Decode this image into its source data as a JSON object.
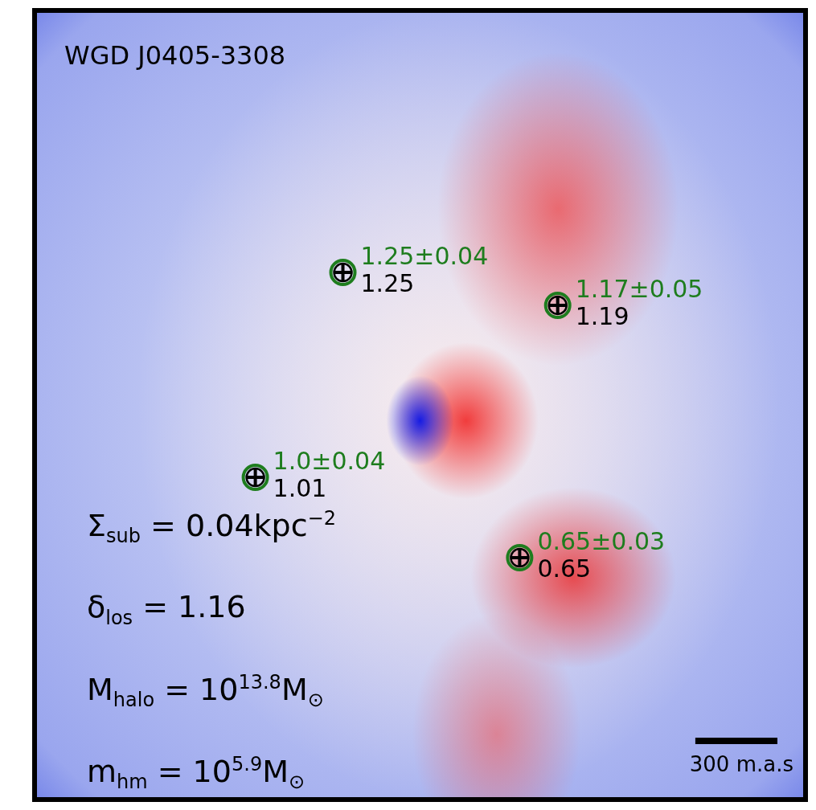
{
  "chart_data": {
    "type": "map",
    "title": "WGD J0405-3308",
    "xlim": [
      -1400,
      1400
    ],
    "ylim": [
      -1420,
      1420
    ],
    "grid": false,
    "tick_labels": false,
    "images": {
      "x": [
        -282,
        503,
        -602,
        364
      ],
      "y": [
        480,
        361,
        -262,
        -553
      ],
      "measured_labels": [
        "1.25±0.04",
        "1.17±0.05",
        "1.0±0.04",
        "0.65±0.03"
      ],
      "model": [
        1.25,
        1.19,
        1.01,
        0.65
      ],
      "color": "#1e7d1e"
    },
    "scale_bar": {
      "length": 300,
      "label": "300 m.a.s"
    },
    "annotations": [
      [
        {
          "t": "Σ"
        },
        {
          "sub": "sub"
        },
        {
          "t": " = 0.04kpc"
        },
        {
          "sup": "−2"
        }
      ],
      [
        {
          "t": "δ"
        },
        {
          "sub": "los"
        },
        {
          "t": " = 1.16"
        }
      ],
      [
        {
          "t": "M"
        },
        {
          "sub": "halo"
        },
        {
          "t": " = 10"
        },
        {
          "sup": "13.8"
        },
        {
          "t": "M"
        },
        {
          "sub": "⊙"
        }
      ],
      [
        {
          "t": "m"
        },
        {
          "sub": "hm"
        },
        {
          "t": " = 10"
        },
        {
          "sup": "5.9"
        },
        {
          "t": "M"
        },
        {
          "sub": "⊙"
        }
      ]
    ]
  }
}
